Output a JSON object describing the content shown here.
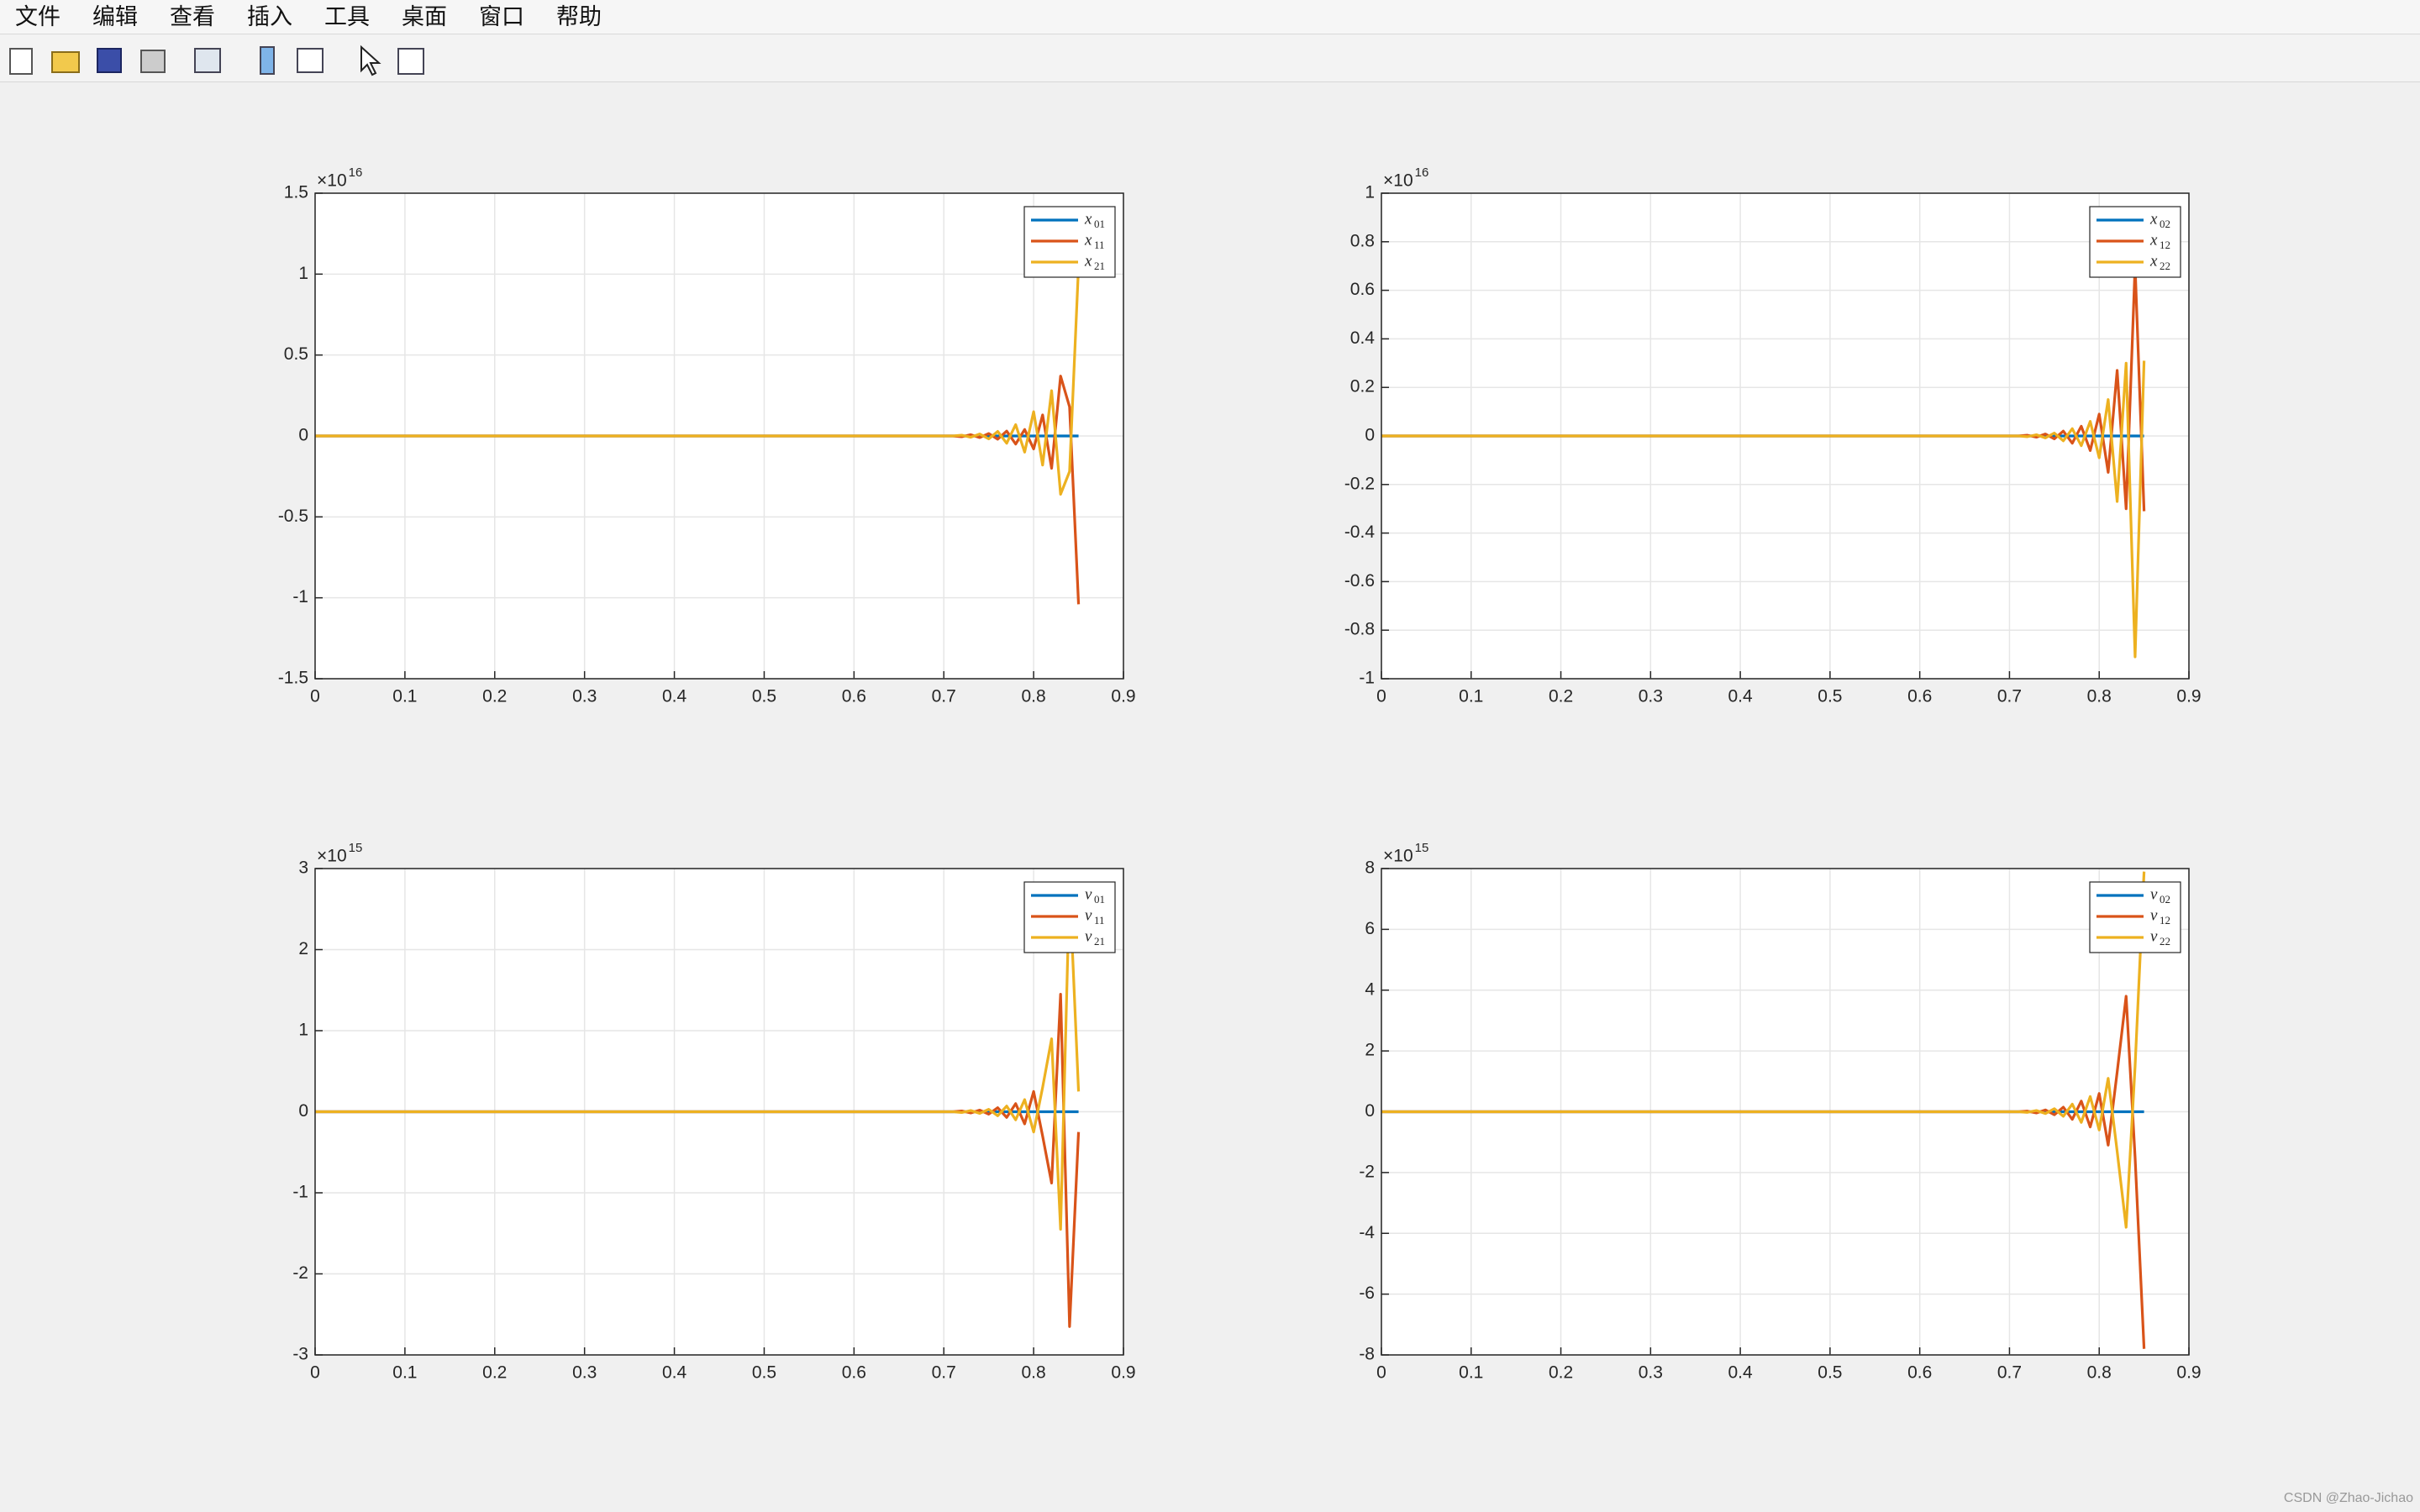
{
  "menu": [
    "文件",
    "编辑",
    "查看",
    "插入",
    "工具",
    "桌面",
    "窗口",
    "帮助"
  ],
  "watermark": "CSDN @Zhao-Jichao",
  "chart_data": [
    {
      "type": "line",
      "x": [
        0,
        0.7,
        0.71,
        0.72,
        0.73,
        0.74,
        0.75,
        0.76,
        0.77,
        0.78,
        0.79,
        0.8,
        0.81,
        0.82,
        0.83,
        0.84,
        0.85
      ],
      "xlim": [
        0,
        0.9
      ],
      "xticks": [
        0,
        0.1,
        0.2,
        0.3,
        0.4,
        0.5,
        0.6,
        0.7,
        0.8,
        0.9
      ],
      "ylim": [
        -1.5,
        1.5
      ],
      "yticks": [
        -1.5,
        -1,
        -0.5,
        0,
        0.5,
        1,
        1.5
      ],
      "y_multiplier": "×10",
      "y_exponent": "16",
      "grid": true,
      "legend": "upper right",
      "series": [
        {
          "name": "x",
          "subscript": "01",
          "color": "#0072bd",
          "values": [
            0,
            0,
            0,
            0,
            0,
            0,
            0,
            0,
            0,
            0,
            0,
            0,
            0,
            0,
            0,
            0,
            0
          ]
        },
        {
          "name": "x",
          "subscript": "11",
          "color": "#d95319",
          "values": [
            0,
            0,
            0,
            -0.005,
            0.008,
            -0.01,
            0.015,
            -0.02,
            0.03,
            -0.05,
            0.04,
            -0.08,
            0.13,
            -0.2,
            0.37,
            0.18,
            -1.04
          ]
        },
        {
          "name": "x",
          "subscript": "21",
          "color": "#edb120",
          "values": [
            0,
            0,
            0,
            0.005,
            -0.008,
            0.012,
            -0.018,
            0.028,
            -0.045,
            0.07,
            -0.1,
            0.15,
            -0.18,
            0.28,
            -0.36,
            -0.22,
            1.05
          ]
        }
      ]
    },
    {
      "type": "line",
      "x": [
        0,
        0.7,
        0.71,
        0.72,
        0.73,
        0.74,
        0.75,
        0.76,
        0.77,
        0.78,
        0.79,
        0.8,
        0.81,
        0.82,
        0.83,
        0.84,
        0.85
      ],
      "xlim": [
        0,
        0.9
      ],
      "xticks": [
        0,
        0.1,
        0.2,
        0.3,
        0.4,
        0.5,
        0.6,
        0.7,
        0.8,
        0.9
      ],
      "ylim": [
        -1,
        1
      ],
      "yticks": [
        -1,
        -0.8,
        -0.6,
        -0.4,
        -0.2,
        0,
        0.2,
        0.4,
        0.6,
        0.8,
        1
      ],
      "y_multiplier": "×10",
      "y_exponent": "16",
      "grid": true,
      "legend": "upper right",
      "series": [
        {
          "name": "x",
          "subscript": "02",
          "color": "#0072bd",
          "values": [
            0,
            0,
            0,
            0,
            0,
            0,
            0,
            0,
            0,
            0,
            0,
            0,
            0,
            0,
            0,
            0,
            0
          ]
        },
        {
          "name": "x",
          "subscript": "12",
          "color": "#d95319",
          "values": [
            0,
            0,
            0,
            0.003,
            -0.005,
            0.008,
            -0.012,
            0.02,
            -0.03,
            0.04,
            -0.06,
            0.09,
            -0.15,
            0.27,
            -0.3,
            0.7,
            -0.31
          ]
        },
        {
          "name": "x",
          "subscript": "22",
          "color": "#edb120",
          "values": [
            0,
            0,
            0,
            -0.003,
            0.005,
            -0.008,
            0.012,
            -0.02,
            0.03,
            -0.04,
            0.06,
            -0.09,
            0.15,
            -0.27,
            0.3,
            -0.91,
            0.31
          ]
        }
      ]
    },
    {
      "type": "line",
      "x": [
        0,
        0.7,
        0.71,
        0.72,
        0.73,
        0.74,
        0.75,
        0.76,
        0.77,
        0.78,
        0.79,
        0.8,
        0.81,
        0.82,
        0.83,
        0.84,
        0.85
      ],
      "xlim": [
        0,
        0.9
      ],
      "xticks": [
        0,
        0.1,
        0.2,
        0.3,
        0.4,
        0.5,
        0.6,
        0.7,
        0.8,
        0.9
      ],
      "ylim": [
        -3,
        3
      ],
      "yticks": [
        -3,
        -2,
        -1,
        0,
        1,
        2,
        3
      ],
      "y_multiplier": "×10",
      "y_exponent": "15",
      "grid": true,
      "legend": "upper right",
      "series": [
        {
          "name": "v",
          "subscript": "01",
          "color": "#0072bd",
          "values": [
            0,
            0,
            0,
            0,
            0,
            0,
            0,
            0,
            0,
            0,
            0,
            0,
            0,
            0,
            0,
            0,
            0
          ]
        },
        {
          "name": "v",
          "subscript": "11",
          "color": "#d95319",
          "values": [
            0,
            0,
            0,
            0.01,
            -0.015,
            0.02,
            -0.03,
            0.05,
            -0.07,
            0.1,
            -0.15,
            0.25,
            -0.3,
            -0.88,
            1.45,
            -2.65,
            -0.25
          ]
        },
        {
          "name": "v",
          "subscript": "21",
          "color": "#edb120",
          "values": [
            0,
            0,
            0,
            -0.01,
            0.015,
            -0.02,
            0.03,
            -0.05,
            0.07,
            -0.1,
            0.15,
            -0.25,
            0.3,
            0.9,
            -1.45,
            2.8,
            0.25
          ]
        }
      ]
    },
    {
      "type": "line",
      "x": [
        0,
        0.7,
        0.71,
        0.72,
        0.73,
        0.74,
        0.75,
        0.76,
        0.77,
        0.78,
        0.79,
        0.8,
        0.81,
        0.82,
        0.83,
        0.84,
        0.85
      ],
      "xlim": [
        0,
        0.9
      ],
      "xticks": [
        0,
        0.1,
        0.2,
        0.3,
        0.4,
        0.5,
        0.6,
        0.7,
        0.8,
        0.9
      ],
      "ylim": [
        -8,
        8
      ],
      "yticks": [
        -8,
        -6,
        -4,
        -2,
        0,
        2,
        4,
        6,
        8
      ],
      "y_multiplier": "×10",
      "y_exponent": "15",
      "grid": true,
      "legend": "upper right",
      "series": [
        {
          "name": "v",
          "subscript": "02",
          "color": "#0072bd",
          "values": [
            0,
            0,
            0,
            0,
            0,
            0,
            0,
            0,
            0,
            0,
            0,
            0,
            0,
            0,
            0,
            0,
            0
          ]
        },
        {
          "name": "v",
          "subscript": "12",
          "color": "#d95319",
          "values": [
            0,
            0,
            0,
            0.02,
            -0.04,
            0.06,
            -0.1,
            0.15,
            -0.25,
            0.35,
            -0.5,
            0.6,
            -1.1,
            1.3,
            3.8,
            -1.5,
            -7.8
          ]
        },
        {
          "name": "v",
          "subscript": "22",
          "color": "#edb120",
          "values": [
            0,
            0,
            0,
            -0.02,
            0.04,
            -0.06,
            0.1,
            -0.15,
            0.25,
            -0.35,
            0.5,
            -0.6,
            1.1,
            -1.3,
            -3.8,
            1.5,
            7.9
          ]
        }
      ]
    }
  ]
}
